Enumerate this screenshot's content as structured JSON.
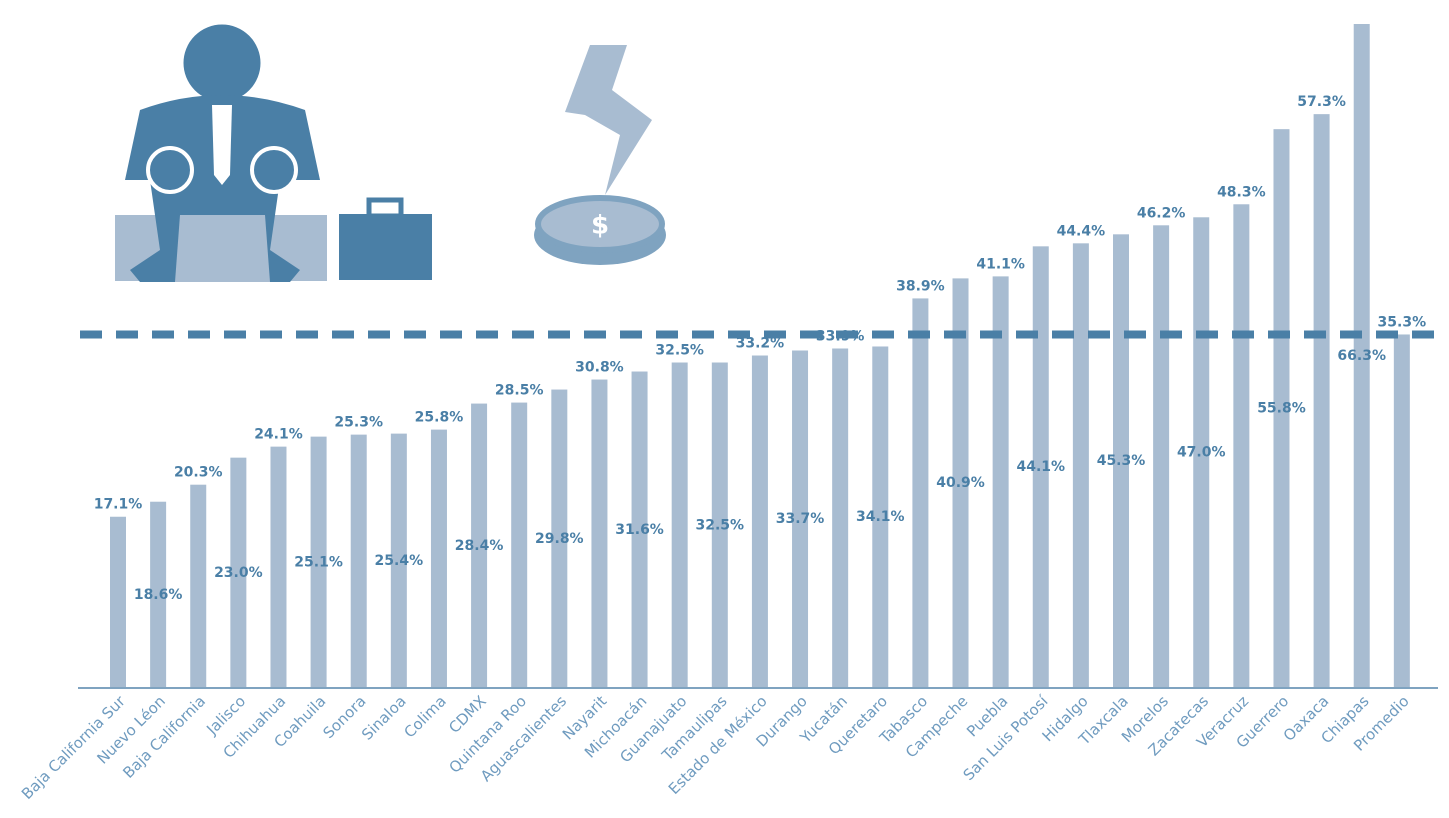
{
  "chart_data": {
    "type": "bar",
    "categories": [
      "Baja California Sur",
      "Nuevo Léon",
      "Baja California",
      "Jalisco",
      "Chihuahua",
      "Coahuila",
      "Sonora",
      "Sinaloa",
      "Colima",
      "CDMX",
      "Quintana Roo",
      "Aguascalientes",
      "Nayarit",
      "Michoacán",
      "Guanajuato",
      "Tamaulipas",
      "Estado de México",
      "Durango",
      "Yucatán",
      "Queretaro",
      "Tabasco",
      "Campeche",
      "Puebla",
      "San Luis Potosí",
      "Hidalgo",
      "Tlaxcala",
      "Morelos",
      "Zacatecas",
      "Veracruz",
      "Guerrero",
      "Oaxaca",
      "Chiapas",
      "Promedio"
    ],
    "values": [
      17.1,
      18.6,
      20.3,
      23.0,
      24.1,
      25.1,
      25.3,
      25.4,
      25.8,
      28.4,
      28.5,
      29.8,
      30.8,
      31.6,
      32.5,
      32.5,
      33.2,
      33.7,
      33.9,
      34.1,
      38.9,
      40.9,
      41.1,
      44.1,
      44.4,
      45.3,
      46.2,
      47.0,
      48.3,
      55.8,
      57.3,
      66.3,
      35.3
    ],
    "value_labels": [
      "17.1%",
      "18.6%",
      "20.3%",
      "23.0%",
      "24.1%",
      "25.1%",
      "25.3%",
      "25.4%",
      "25.8%",
      "28.4%",
      "28.5%",
      "29.8%",
      "30.8%",
      "31.6%",
      "32.5%",
      "32.5%",
      "33.2%",
      "33.7%",
      "33.9%",
      "34.1%",
      "38.9%",
      "40.9%",
      "41.1%",
      "44.1%",
      "44.4%",
      "45.3%",
      "46.2%",
      "47.0%",
      "48.3%",
      "55.8%",
      "57.3%",
      "66.3%",
      "35.3%"
    ],
    "color": "#a8bcd1",
    "ylim": [
      0,
      66.3
    ]
  }
}
